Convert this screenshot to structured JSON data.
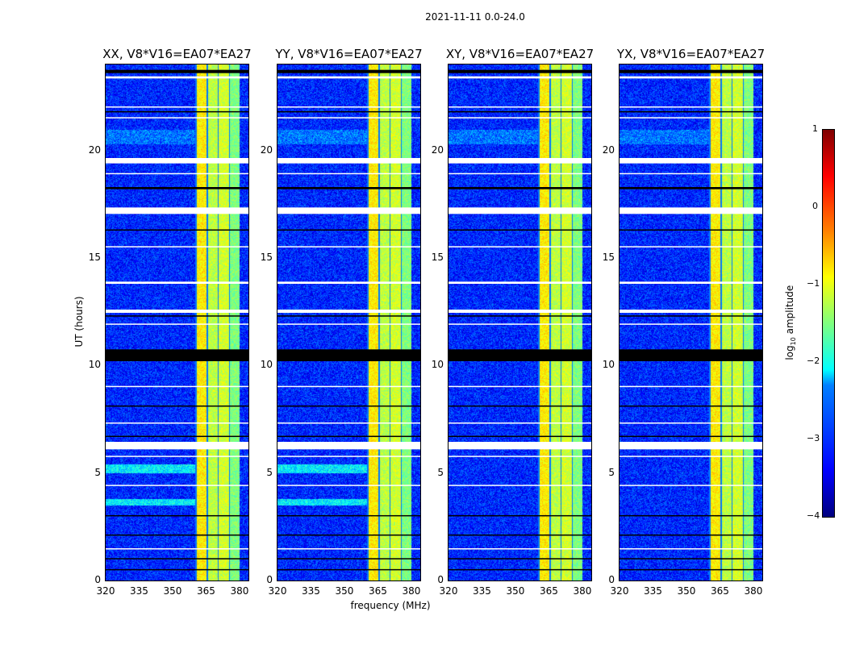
{
  "figure_title": "2021-11-11 0.0-24.0",
  "chart_data": {
    "type": "heatmap",
    "title": "2021-11-11 0.0-24.0",
    "xlabel": "frequency (MHz)",
    "ylabel": "UT (hours)",
    "xlim": [
      320,
      384
    ],
    "ylim": [
      0,
      24
    ],
    "xticks": [
      320,
      335,
      350,
      365,
      380
    ],
    "yticks": [
      0,
      5,
      10,
      15,
      20
    ],
    "panels": [
      {
        "title": "XX, V8*V16=EA07*EA27",
        "cyan_rows": true
      },
      {
        "title": "YY, V8*V16=EA07*EA27",
        "cyan_rows": true
      },
      {
        "title": "XY, V8*V16=EA07*EA27",
        "cyan_rows": false
      },
      {
        "title": "YX, V8*V16=EA07*EA27",
        "cyan_rows": false
      }
    ],
    "background_log_amplitude": -3.2,
    "rfi_band_mhz": [
      360,
      380
    ],
    "rfi_subbands": [
      {
        "from": 360,
        "to": 365,
        "level": -0.8
      },
      {
        "from": 365,
        "to": 370,
        "level": -1.2
      },
      {
        "from": 370,
        "to": 375,
        "level": -1.1
      },
      {
        "from": 375,
        "to": 380,
        "level": -1.5
      }
    ],
    "flagged_rows_ut": [
      [
        23.35,
        23.45
      ],
      [
        22.0,
        22.05
      ],
      [
        21.5,
        21.55
      ],
      [
        19.4,
        19.65
      ],
      [
        18.9,
        18.95
      ],
      [
        17.05,
        17.35
      ],
      [
        15.5,
        15.55
      ],
      [
        13.8,
        13.9
      ],
      [
        12.45,
        12.6
      ],
      [
        11.9,
        11.95
      ],
      [
        9.0,
        9.05
      ],
      [
        7.3,
        7.35
      ],
      [
        6.1,
        6.45
      ],
      [
        5.75,
        5.8
      ],
      [
        4.4,
        4.45
      ],
      [
        1.45,
        1.5
      ]
    ],
    "dropout_rows_ut": [
      [
        23.6,
        23.75
      ],
      [
        21.8,
        21.83
      ],
      [
        18.2,
        18.3
      ],
      [
        16.3,
        16.33
      ],
      [
        12.3,
        12.33
      ],
      [
        10.2,
        10.75
      ],
      [
        8.1,
        8.14
      ],
      [
        6.7,
        6.73
      ],
      [
        3.0,
        3.04
      ],
      [
        2.1,
        2.14
      ],
      [
        1.0,
        1.04
      ],
      [
        0.5,
        0.53
      ]
    ],
    "colorbar": {
      "label": "log10 amplitude",
      "label_main": "log",
      "label_sub": "10",
      "label_tail": " amplitude",
      "range": [
        -4,
        1
      ],
      "ticks": [
        "1",
        "0",
        "−1",
        "−2",
        "−3",
        "−4"
      ],
      "tick_values": [
        1,
        0,
        -1,
        -2,
        -3,
        -4
      ],
      "colormap": "jet"
    }
  }
}
